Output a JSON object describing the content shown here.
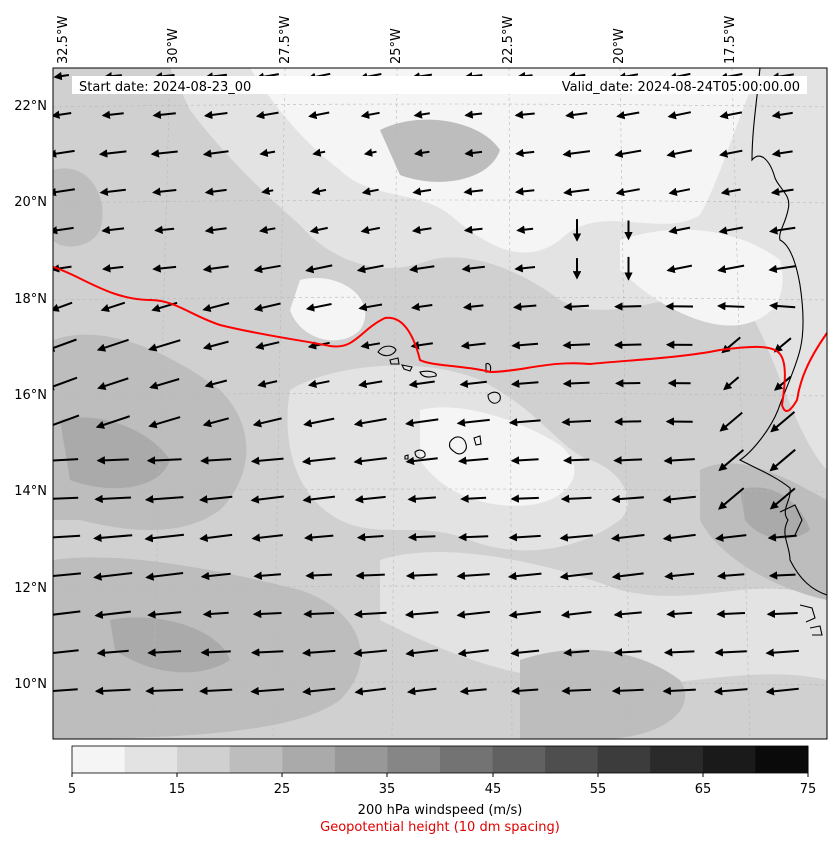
{
  "map": {
    "header_left": "Start date: 2024-08-23_00:00:00",
    "header_right": "Valid_date: 2024-08-24T05:00:00.00",
    "lon_labels": [
      "32.5°W",
      "30°W",
      "27.5°W",
      "25°W",
      "22.5°W",
      "20°W",
      "17.5°W"
    ],
    "lat_labels": [
      "22°N",
      "20°N",
      "18°N",
      "16°N",
      "14°N",
      "12°N",
      "10°N"
    ],
    "colorbar": {
      "ticks": [
        "5",
        "15",
        "25",
        "35",
        "45",
        "55",
        "65",
        "75"
      ],
      "colors": [
        "#f5f5f5",
        "#e3e3e3",
        "#d0d0d0",
        "#bdbdbd",
        "#aaaaaa",
        "#989898",
        "#868686",
        "#737373",
        "#616161",
        "#4e4e4e",
        "#3c3c3c",
        "#2a2a2a",
        "#1a1a1a",
        "#0a0a0a"
      ],
      "label": "200 hPa windspeed (m/s)",
      "caption2": "Geopotential height (10 dm spacing)"
    },
    "contour_color": "#ff0000"
  }
}
